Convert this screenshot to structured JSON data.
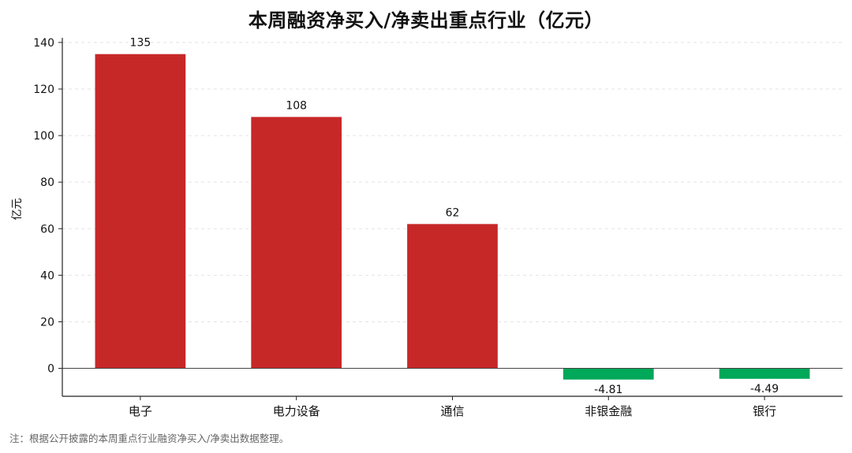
{
  "chart_data": {
    "type": "bar",
    "title": "本周融资净买入/净卖出重点行业（亿元）",
    "ylabel": "亿元",
    "xlabel": "",
    "categories": [
      "电子",
      "电力设备",
      "通信",
      "非银金融",
      "银行"
    ],
    "values": [
      135,
      108,
      62,
      -4.81,
      -4.49
    ],
    "value_labels": [
      "135",
      "108",
      "62",
      "-4.81",
      "-4.49"
    ],
    "ylim": [
      -12,
      142
    ],
    "yticks": [
      0,
      20,
      40,
      60,
      80,
      100,
      120,
      140
    ],
    "grid": true,
    "colors": {
      "positive": "#c62828",
      "negative": "#00a859",
      "grid": "#e3e3e3",
      "axis": "#222222"
    }
  },
  "footnote": "注：根据公开披露的本周重点行业融资净买入/净卖出数据整理。"
}
